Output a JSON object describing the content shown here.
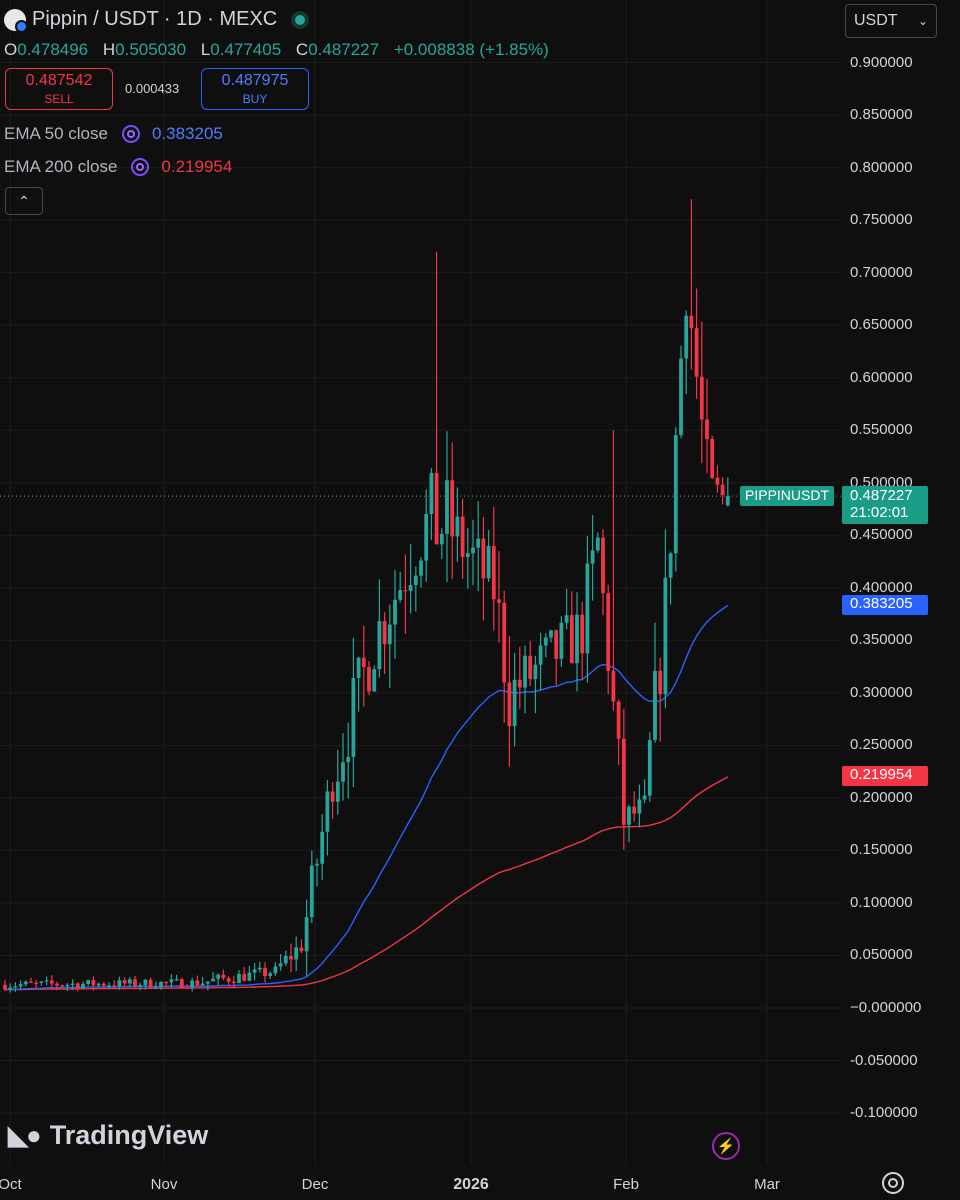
{
  "header": {
    "title": "Pippin / USDT · 1D · MEXC"
  },
  "ohlc": {
    "o_label": "O",
    "o": "0.478496",
    "h_label": "H",
    "h": "0.505030",
    "l_label": "L",
    "l": "0.477405",
    "c_label": "C",
    "c": "0.487227",
    "change": "+0.008838 (+1.85%)"
  },
  "trade": {
    "sell_price": "0.487542",
    "sell_label": "SELL",
    "spread": "0.000433",
    "buy_price": "0.487975",
    "buy_label": "BUY"
  },
  "indicators": [
    {
      "label": "EMA 50 close",
      "value": "0.383205",
      "color": "#2962ff"
    },
    {
      "label": "EMA 200 close",
      "value": "0.219954",
      "color": "#f23645"
    }
  ],
  "currency_select": {
    "value": "USDT"
  },
  "price_tag": {
    "symbol": "PIPPINUSDT",
    "price": "0.487227",
    "countdown": "21:02:01",
    "color": "#26a69a"
  },
  "brand": {
    "name": "TradingView"
  },
  "chart_data": {
    "type": "candlestick",
    "title": "Pippin / USDT · 1D · MEXC",
    "ylim": [
      -0.12,
      0.9
    ],
    "y_ticks": [
      "0.900000",
      "0.850000",
      "0.800000",
      "0.750000",
      "0.700000",
      "0.650000",
      "0.600000",
      "0.550000",
      "0.500000",
      "0.450000",
      "0.400000",
      "0.350000",
      "0.300000",
      "0.250000",
      "0.200000",
      "0.150000",
      "0.100000",
      "0.050000",
      "0.000000",
      "-0.050000",
      "-0.100000"
    ],
    "x_ticks": [
      "Oct",
      "Nov",
      "Dec",
      "2026",
      "Feb",
      "Mar"
    ],
    "up_color": "#26a69a",
    "down_color": "#f23645",
    "segments": [
      {
        "start_day": 0,
        "end_day": 38,
        "start": 0.022,
        "end": 0.024,
        "vol": 0.009
      },
      {
        "start_day": 38,
        "end_day": 53,
        "start": 0.024,
        "end": 0.035,
        "vol": 0.012
      },
      {
        "start_day": 53,
        "end_day": 58,
        "start": 0.035,
        "end": 0.06,
        "vol": 0.02
      },
      {
        "start_day": 58,
        "end_day": 64,
        "start": 0.06,
        "end": 0.22,
        "vol": 0.05
      },
      {
        "start_day": 64,
        "end_day": 72,
        "start": 0.22,
        "end": 0.35,
        "vol": 0.07
      },
      {
        "start_day": 72,
        "end_day": 82,
        "start": 0.35,
        "end": 0.46,
        "vol": 0.07
      },
      {
        "start_day": 82,
        "end_day": 86,
        "start": 0.46,
        "end": 0.46,
        "vol": 0.1
      },
      {
        "start_day": 86,
        "end_day": 95,
        "start": 0.46,
        "end": 0.4,
        "vol": 0.07
      },
      {
        "start_day": 95,
        "end_day": 98,
        "start": 0.4,
        "end": 0.3,
        "vol": 0.08
      },
      {
        "start_day": 98,
        "end_day": 112,
        "start": 0.3,
        "end": 0.36,
        "vol": 0.06
      },
      {
        "start_day": 112,
        "end_day": 115,
        "start": 0.36,
        "end": 0.44,
        "vol": 0.08
      },
      {
        "start_day": 115,
        "end_day": 120,
        "start": 0.44,
        "end": 0.18,
        "vol": 0.06
      },
      {
        "start_day": 120,
        "end_day": 124,
        "start": 0.18,
        "end": 0.19,
        "vol": 0.03
      },
      {
        "start_day": 124,
        "end_day": 128,
        "start": 0.19,
        "end": 0.38,
        "vol": 0.08
      },
      {
        "start_day": 128,
        "end_day": 132,
        "start": 0.38,
        "end": 0.7,
        "vol": 0.09
      },
      {
        "start_day": 132,
        "end_day": 136,
        "start": 0.7,
        "end": 0.5,
        "vol": 0.09
      },
      {
        "start_day": 136,
        "end_day": 139,
        "start": 0.5,
        "end": 0.487,
        "vol": 0.03
      }
    ],
    "notable_highs": [
      {
        "day": 83,
        "high": 0.72
      },
      {
        "day": 117,
        "high": 0.55
      },
      {
        "day": 132,
        "high": 0.77
      }
    ],
    "last": {
      "day": 139,
      "open": 0.478496,
      "high": 0.50503,
      "low": 0.477405,
      "close": 0.487227
    },
    "series": [
      {
        "name": "EMA 50 close",
        "period": 50,
        "last_value": 0.383205,
        "color": "#2962ff"
      },
      {
        "name": "EMA 200 close",
        "period": 200,
        "last_value": 0.219954,
        "color": "#f23645"
      }
    ],
    "grid": true
  }
}
